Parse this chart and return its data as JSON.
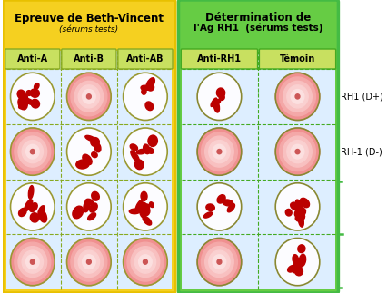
{
  "title_left": "Epreuve de Beth-Vincent",
  "subtitle_left": "(sérums tests)",
  "title_right_line1": "Détermination de",
  "title_right_line2": "l'Ag RH1",
  "subtitle_right": "(sérums tests)",
  "col_headers_left": [
    "Anti-A",
    "Anti-B",
    "Anti-AB"
  ],
  "col_headers_right": [
    "Anti-RH1",
    "Témoin"
  ],
  "row_labels_right": [
    "RH1 (D+)",
    "RH-1 (D-)"
  ],
  "left_box_edge": "#E8C000",
  "left_box_face": "#F5D020",
  "right_box_edge": "#44BB44",
  "right_box_face": "#66CC44",
  "left_bg": "#ddeeff",
  "right_bg": "#ddeeff",
  "col_header_bg_left": "#c8e060",
  "col_header_bg_right": "#c8e060",
  "col_header_edge_left": "#88AA22",
  "col_header_edge_right": "#44AA22",
  "agg_color": "#BB0000",
  "circle_border_left": "#999933",
  "circle_border_right": "#888833",
  "sep_color_left": "#88AA22",
  "sep_color_right": "#44AA22",
  "left_grid": [
    [
      true,
      false,
      true
    ],
    [
      false,
      true,
      true
    ],
    [
      true,
      true,
      true
    ],
    [
      false,
      false,
      false
    ]
  ],
  "right_grid": [
    [
      true,
      false
    ],
    [
      false,
      false
    ],
    [
      true,
      true
    ],
    [
      false,
      true
    ]
  ],
  "fig_w": 4.26,
  "fig_h": 3.23,
  "dpi": 100
}
